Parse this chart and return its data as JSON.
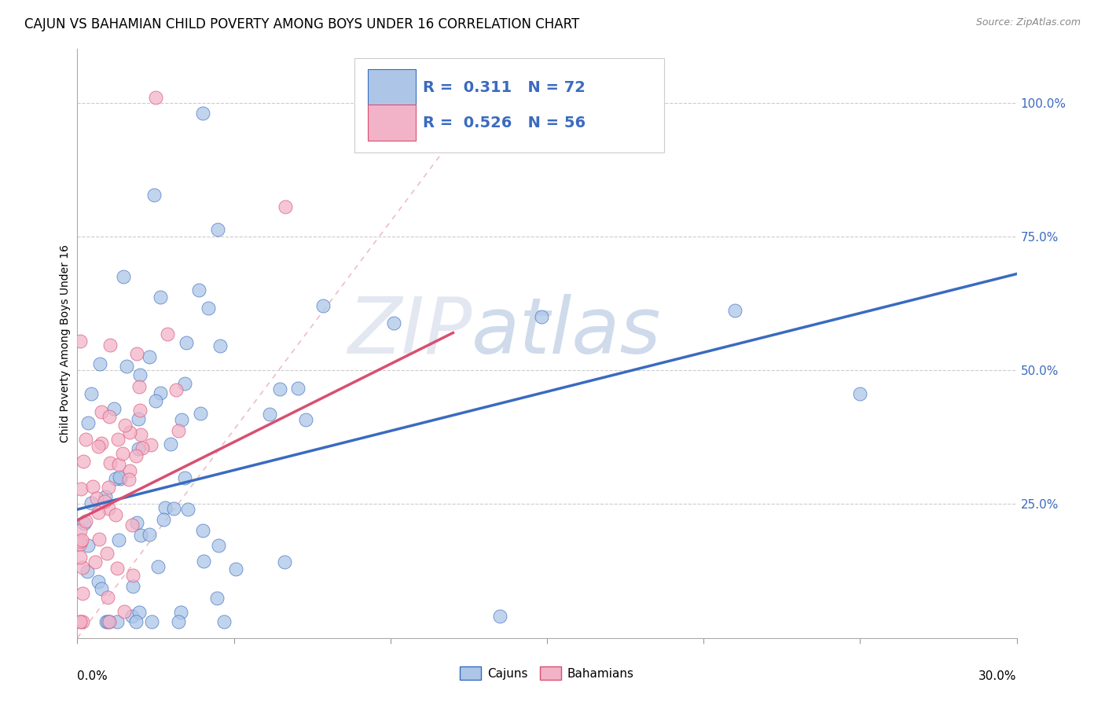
{
  "title": "CAJUN VS BAHAMIAN CHILD POVERTY AMONG BOYS UNDER 16 CORRELATION CHART",
  "source": "Source: ZipAtlas.com",
  "ylabel": "Child Poverty Among Boys Under 16",
  "right_yticks": [
    0.25,
    0.5,
    0.75,
    1.0
  ],
  "right_yticklabels": [
    "25.0%",
    "50.0%",
    "75.0%",
    "100.0%"
  ],
  "xlim": [
    0.0,
    0.3
  ],
  "ylim": [
    0.0,
    1.1
  ],
  "cajuns_R": "0.311",
  "cajuns_N": "72",
  "bahamians_R": "0.526",
  "bahamians_N": "56",
  "cajun_color": "#adc6e8",
  "bahamian_color": "#f2b3c8",
  "cajun_line_color": "#3a6bbf",
  "bahamian_line_color": "#d94f70",
  "watermark_zip": "ZIP",
  "watermark_atlas": "atlas",
  "background_color": "#ffffff",
  "grid_color": "#cccccc",
  "title_fontsize": 12,
  "axis_label_fontsize": 10,
  "tick_fontsize": 11,
  "legend_fontsize": 14
}
